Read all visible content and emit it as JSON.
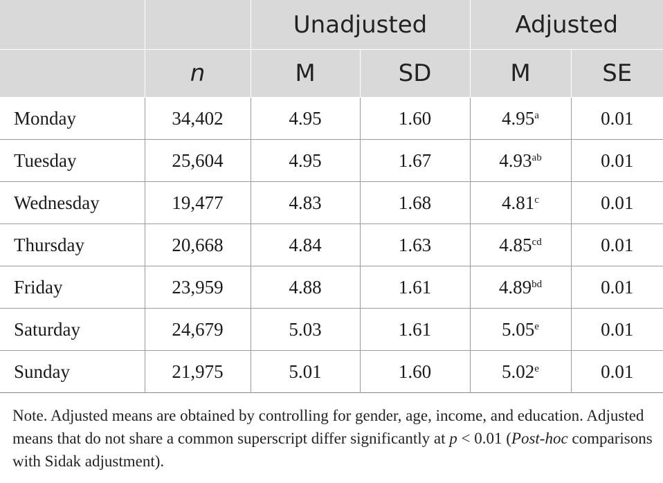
{
  "header": {
    "row1": {
      "blank_a": "",
      "blank_b": "",
      "unadjusted": "Unadjusted",
      "adjusted": "Adjusted"
    },
    "row2": {
      "blank": "",
      "n": "n",
      "unadj_m": "M",
      "unadj_sd": "SD",
      "adj_m": "M",
      "adj_se": "SE"
    }
  },
  "rows": [
    {
      "day": "Monday",
      "n": "34,402",
      "m": "4.95",
      "sd": "1.60",
      "adj_m": "4.95",
      "sup": "a",
      "se": "0.01"
    },
    {
      "day": "Tuesday",
      "n": "25,604",
      "m": "4.95",
      "sd": "1.67",
      "adj_m": "4.93",
      "sup": "ab",
      "se": "0.01"
    },
    {
      "day": "Wednesday",
      "n": "19,477",
      "m": "4.83",
      "sd": "1.68",
      "adj_m": "4.81",
      "sup": "c",
      "se": "0.01"
    },
    {
      "day": "Thursday",
      "n": "20,668",
      "m": "4.84",
      "sd": "1.63",
      "adj_m": "4.85",
      "sup": "cd",
      "se": "0.01"
    },
    {
      "day": "Friday",
      "n": "23,959",
      "m": "4.88",
      "sd": "1.61",
      "adj_m": "4.89",
      "sup": "bd",
      "se": "0.01"
    },
    {
      "day": "Saturday",
      "n": "24,679",
      "m": "5.03",
      "sd": "1.61",
      "adj_m": "5.05",
      "sup": "e",
      "se": "0.01"
    },
    {
      "day": "Sunday",
      "n": "21,975",
      "m": "5.01",
      "sd": "1.60",
      "adj_m": "5.02",
      "sup": "e",
      "se": "0.01"
    }
  ],
  "note": {
    "part1": "Note. Adjusted means are obtained by controlling for gender, age, income, and education. Adjusted means that do not share a common superscript differ significantly at ",
    "p_label": "p",
    "part2": " < 0.01 (",
    "posthoc": "Post-hoc",
    "part3": " comparisons with Sidak adjustment)."
  }
}
